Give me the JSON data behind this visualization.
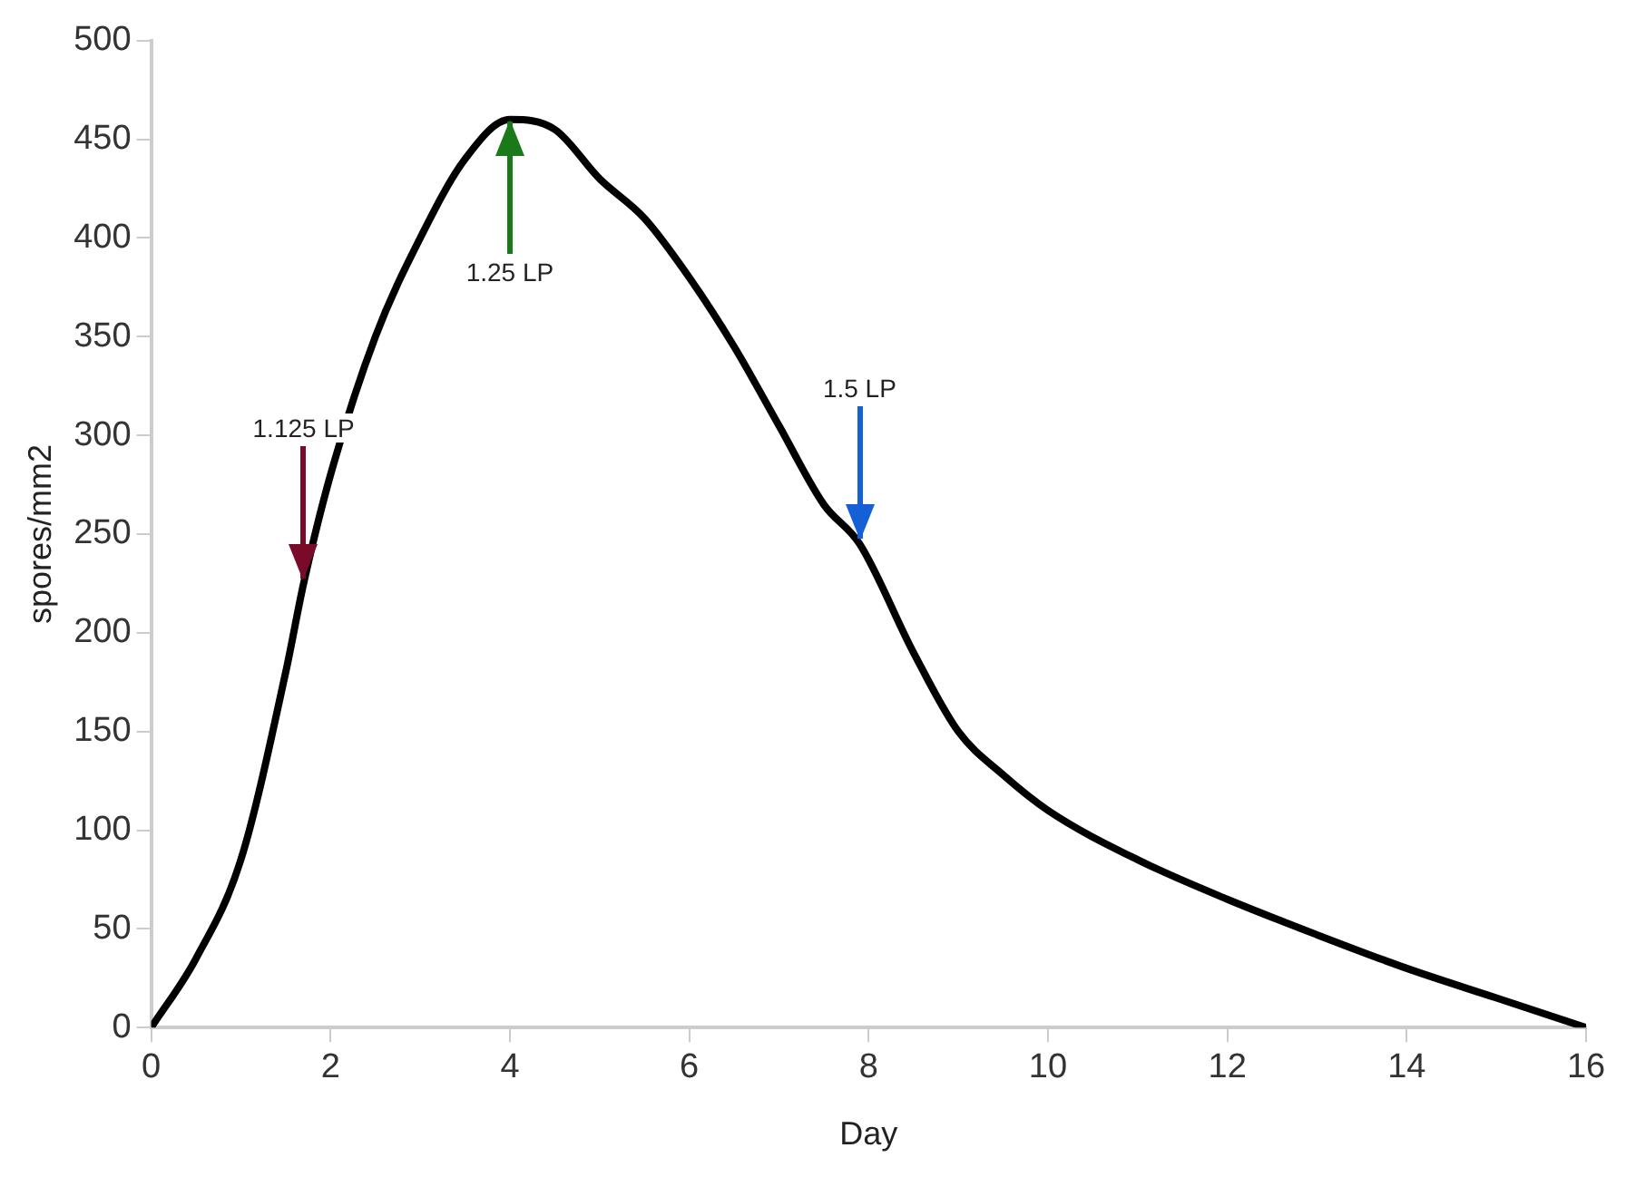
{
  "chart_data": {
    "type": "line",
    "xlabel": "Day",
    "ylabel": "spores/mm2",
    "x": [
      0,
      0.5,
      1,
      1.5,
      1.7,
      2,
      2.5,
      3,
      3.5,
      4,
      4.5,
      5,
      5.5,
      6,
      6.5,
      7,
      7.5,
      7.9,
      8.5,
      9,
      9.5,
      10,
      11,
      12,
      13,
      14,
      15,
      16
    ],
    "series": [
      {
        "color": "#000000",
        "values": [
          0,
          35,
          85,
          180,
          225,
          280,
          350,
          400,
          440,
          460,
          455,
          430,
          410,
          380,
          345,
          305,
          265,
          245,
          190,
          150,
          128,
          110,
          85,
          65,
          47,
          30,
          15,
          0
        ]
      }
    ],
    "xlim": [
      0,
      16
    ],
    "xticks": [
      0,
      2,
      4,
      6,
      8,
      10,
      12,
      14,
      16
    ],
    "ylim": [
      0,
      500
    ],
    "yticks": [
      0,
      50,
      100,
      150,
      200,
      250,
      300,
      350,
      400,
      450,
      500
    ],
    "grid": false,
    "legend": false,
    "marker": "none",
    "line_style": "solid",
    "annotations": [
      {
        "text": "1.125 LP",
        "x": 1.7,
        "y": 225
      },
      {
        "text": "1.25 LP",
        "x": 4,
        "y": 460
      },
      {
        "text": "1.5 LP",
        "x": 7.9,
        "y": 245
      }
    ]
  }
}
